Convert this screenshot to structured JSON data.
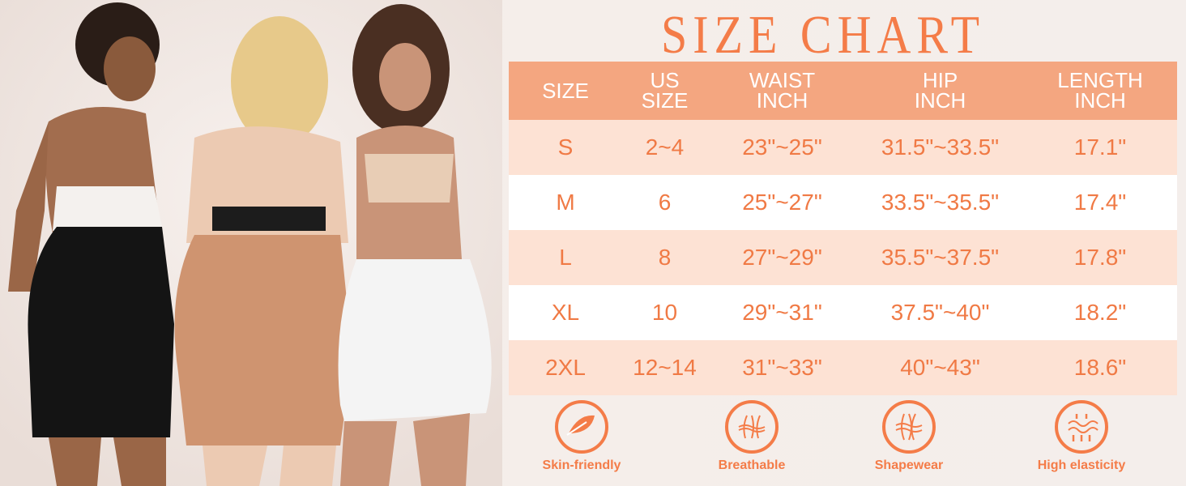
{
  "title": "SIZE CHART",
  "colors": {
    "accent": "#f47c48",
    "header_bg": "#f4a680",
    "row_alt": "#fde2d4"
  },
  "table": {
    "headers": [
      [
        "SIZE"
      ],
      [
        "US",
        "SIZE"
      ],
      [
        "WAIST",
        "INCH"
      ],
      [
        "HIP",
        "INCH"
      ],
      [
        "LENGTH",
        "INCH"
      ]
    ],
    "rows": [
      [
        "S",
        "2~4",
        "23\"~25\"",
        "31.5\"~33.5\"",
        "17.1\""
      ],
      [
        "M",
        "6",
        "25\"~27\"",
        "33.5\"~35.5\"",
        "17.4\""
      ],
      [
        "L",
        "8",
        "27\"~29\"",
        "35.5\"~37.5\"",
        "17.8\""
      ],
      [
        "XL",
        "10",
        "29\"~31\"",
        "37.5\"~40\"",
        "18.2\""
      ],
      [
        "2XL",
        "12~14",
        "31\"~33\"",
        "40\"~43\"",
        "18.6\""
      ]
    ]
  },
  "features": [
    {
      "label": "Skin-friendly",
      "icon": "feather-icon"
    },
    {
      "label": "Breathable",
      "icon": "airflow-icon"
    },
    {
      "label": "Shapewear",
      "icon": "shape-icon"
    },
    {
      "label": "High elasticity",
      "icon": "elastic-icon"
    }
  ]
}
